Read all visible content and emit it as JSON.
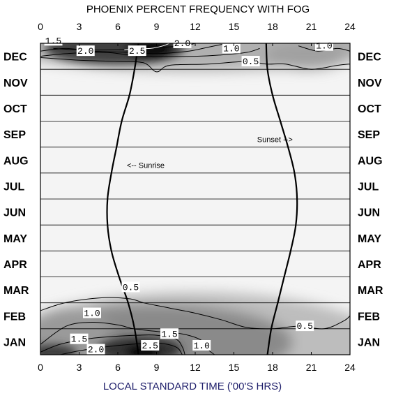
{
  "chart_data": {
    "type": "heatmap",
    "title": "PHOENIX PERCENT FREQUENCY WITH FOG",
    "xlabel": "LOCAL STANDARD TIME ('00'S HRS)",
    "xlim": [
      0,
      24
    ],
    "x_ticks": [
      "0",
      "3",
      "6",
      "9",
      "12",
      "15",
      "18",
      "21",
      "24"
    ],
    "months": [
      "JAN",
      "FEB",
      "MAR",
      "APR",
      "MAY",
      "JUN",
      "JUL",
      "AUG",
      "SEP",
      "OCT",
      "NOV",
      "DEC"
    ],
    "contour_labels": [
      {
        "text": "1.5",
        "hour": 1.0,
        "month": 12.1
      },
      {
        "text": "2.0",
        "hour": 3.5,
        "month": 11.7
      },
      {
        "text": "2.5",
        "hour": 7.5,
        "month": 11.7
      },
      {
        "text": "2.0",
        "hour": 11.0,
        "month": 12.0
      },
      {
        "text": "1.0",
        "hour": 14.8,
        "month": 11.8
      },
      {
        "text": "0.5",
        "hour": 16.3,
        "month": 11.3
      },
      {
        "text": "1.0",
        "hour": 22.0,
        "month": 11.9
      },
      {
        "text": "0.5",
        "hour": 7.0,
        "month": 2.6
      },
      {
        "text": "1.0",
        "hour": 4.0,
        "month": 1.6
      },
      {
        "text": "0.5",
        "hour": 20.5,
        "month": 1.1
      },
      {
        "text": "1.5",
        "hour": 10.0,
        "month": 0.8
      },
      {
        "text": "1.5",
        "hour": 3.0,
        "month": 0.6
      },
      {
        "text": "2.5",
        "hour": 8.5,
        "month": 0.35
      },
      {
        "text": "1.0",
        "hour": 12.5,
        "month": 0.35
      },
      {
        "text": "2.0",
        "hour": 4.3,
        "month": 0.2
      }
    ],
    "contours": [
      {
        "level": 0.5,
        "points": [
          [
            0,
            11.45
          ],
          [
            3,
            11.35
          ],
          [
            6,
            11.3
          ],
          [
            8,
            11.25
          ],
          [
            9,
            10.9
          ],
          [
            10,
            11.15
          ],
          [
            13,
            11.2
          ],
          [
            16,
            11.3
          ],
          [
            17.5,
            11.2
          ],
          [
            19,
            11.2
          ],
          [
            21,
            11.0
          ],
          [
            23,
            11.15
          ],
          [
            24,
            11.2
          ]
        ]
      },
      {
        "level": 0.5,
        "points": [
          [
            0,
            1.7
          ],
          [
            1.5,
            1.95
          ],
          [
            3,
            2.1
          ],
          [
            5,
            2.2
          ],
          [
            7,
            2.15
          ],
          [
            8,
            2.0
          ],
          [
            10,
            1.8
          ],
          [
            12,
            1.6
          ],
          [
            14,
            1.35
          ],
          [
            16,
            1.05
          ],
          [
            18,
            1.0
          ],
          [
            20,
            1.1
          ],
          [
            22,
            1.0
          ],
          [
            23.5,
            1.3
          ],
          [
            24,
            1.5
          ]
        ]
      },
      {
        "level": 1.0,
        "points": [
          [
            0,
            11.5
          ],
          [
            2,
            11.6
          ],
          [
            5,
            11.65
          ],
          [
            8,
            11.5
          ],
          [
            12,
            11.5
          ],
          [
            14,
            11.55
          ],
          [
            16,
            11.65
          ],
          [
            17,
            11.8
          ]
        ]
      },
      {
        "level": 1.0,
        "points": [
          [
            20,
            11.9
          ],
          [
            21.5,
            11.7
          ],
          [
            23,
            11.8
          ],
          [
            24,
            11.7
          ]
        ]
      },
      {
        "level": 1.0,
        "points": [
          [
            0,
            0.4
          ],
          [
            2,
            1.1
          ],
          [
            4,
            1.25
          ],
          [
            6,
            1.15
          ],
          [
            7.2,
            1.0
          ],
          [
            9,
            0.9
          ],
          [
            11,
            0.8
          ],
          [
            12.5,
            0.55
          ],
          [
            13,
            0.2
          ],
          [
            13.5,
            0
          ]
        ]
      },
      {
        "level": 1.5,
        "points": [
          [
            0,
            11.7
          ],
          [
            2,
            11.8
          ],
          [
            4,
            11.7
          ],
          [
            7,
            11.65
          ],
          [
            9,
            11.6
          ],
          [
            11.5,
            11.7
          ],
          [
            13,
            11.85
          ],
          [
            14.5,
            12
          ]
        ]
      },
      {
        "level": 1.5,
        "points": [
          [
            0,
            0.1
          ],
          [
            1.5,
            0.4
          ],
          [
            3.5,
            0.6
          ],
          [
            5.5,
            0.7
          ],
          [
            7.5,
            0.75
          ],
          [
            9,
            0.75
          ],
          [
            10.5,
            0.6
          ],
          [
            11,
            0.3
          ],
          [
            11.2,
            0
          ]
        ]
      },
      {
        "level": 2.0,
        "points": [
          [
            1,
            11.8
          ],
          [
            3,
            11.75
          ],
          [
            6,
            11.75
          ],
          [
            8,
            11.8
          ],
          [
            11,
            11.9
          ],
          [
            12,
            12
          ]
        ]
      },
      {
        "level": 2.0,
        "points": [
          [
            1.5,
            0
          ],
          [
            3,
            0.15
          ],
          [
            5,
            0.3
          ],
          [
            7,
            0.4
          ],
          [
            9,
            0.45
          ],
          [
            10.5,
            0.3
          ],
          [
            11,
            0
          ]
        ]
      },
      {
        "level": 2.5,
        "points": [
          [
            6.5,
            11.75
          ],
          [
            7.5,
            11.8
          ],
          [
            8.5,
            11.8
          ],
          [
            9.5,
            11.9
          ],
          [
            10,
            12
          ]
        ]
      }
    ],
    "sunrise": {
      "label": "<-- Sunrise",
      "label_hour": 6.7,
      "label_month": 7.3,
      "points": [
        [
          7.6,
          0
        ],
        [
          7.3,
          1
        ],
        [
          6.8,
          2
        ],
        [
          6.1,
          3
        ],
        [
          5.5,
          4
        ],
        [
          5.2,
          5
        ],
        [
          5.2,
          6
        ],
        [
          5.5,
          7
        ],
        [
          5.9,
          8
        ],
        [
          6.3,
          9
        ],
        [
          6.9,
          10
        ],
        [
          7.3,
          11
        ],
        [
          7.6,
          12
        ]
      ]
    },
    "sunset": {
      "label": "Sunset -->",
      "label_hour": 16.8,
      "label_month": 8.3,
      "points": [
        [
          17.6,
          0
        ],
        [
          17.9,
          1
        ],
        [
          18.4,
          2
        ],
        [
          18.9,
          3
        ],
        [
          19.4,
          4
        ],
        [
          19.8,
          5
        ],
        [
          19.9,
          6
        ],
        [
          19.7,
          7
        ],
        [
          19.2,
          8
        ],
        [
          18.6,
          9
        ],
        [
          18.0,
          10
        ],
        [
          17.6,
          11
        ],
        [
          17.5,
          12
        ]
      ]
    }
  }
}
